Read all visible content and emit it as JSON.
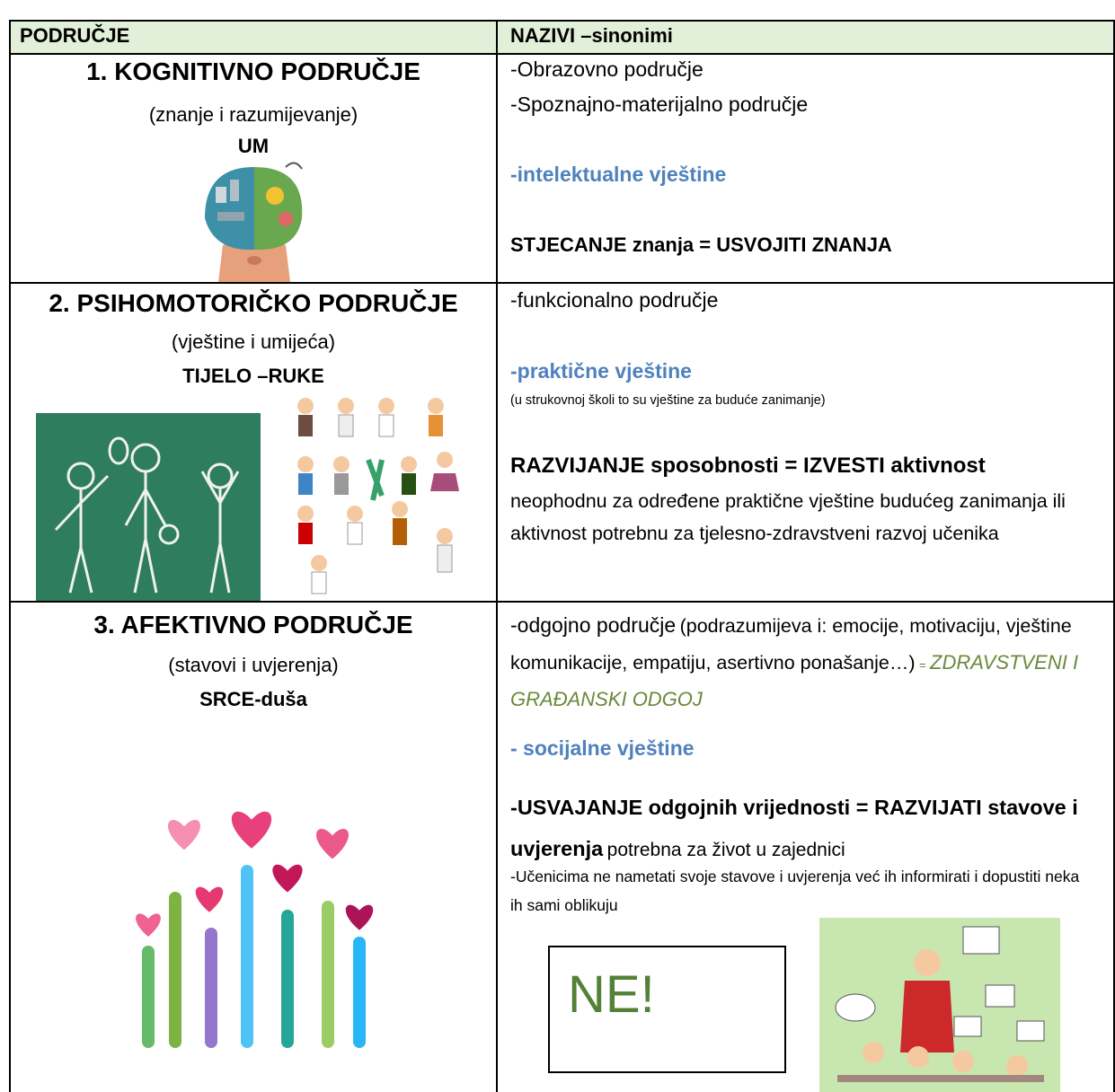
{
  "header": {
    "col1": "PODRUČJE",
    "col2": "NAZIVI –sinonimi"
  },
  "rows": [
    {
      "title": "1. KOGNITIVNO PODRUČJE",
      "subtitle": "(znanje i razumijevanje)",
      "keyword": "UM",
      "synonyms": [
        "-Obrazovno područje",
        "-Spoznajno-materijalno područje"
      ],
      "skills": "-intelektualne vještine",
      "goal": "STJECANJE znanja = USVOJITI ZNANJA"
    },
    {
      "title": "2. PSIHOMOTORIČKO PODRUČJE",
      "subtitle": "(vještine i umijeća)",
      "keyword": "TIJELO –RUKE",
      "synonyms": [
        "-funkcionalno područje"
      ],
      "skills": "-praktične vještine",
      "skills_note": "(u strukovnoj školi to su vještine za buduće zanimanje)",
      "goal": "RAZVIJANJE sposobnosti = IZVESTI aktivnost",
      "goal_detail": "neophodnu za određene praktične vještine budućeg zanimanja ili aktivnost potrebnu za tjelesno-zdravstveni razvoj učenika"
    },
    {
      "title": "3. AFEKTIVNO PODRUČJE",
      "subtitle": "(stavovi i uvjerenja)",
      "keyword": "SRCE-duša",
      "synonym": "-odgojno područje",
      "synonym_note": "(podrazumijeva i: emocije, motivaciju, vještine komunikacije, empatiju, asertivno ponašanje…)",
      "equals": "=",
      "education": "ZDRAVSTVENI I GRAĐANSKI ODGOJ",
      "skills": "- socijalne vještine",
      "goal": "-USVAJANJE odgojnih vrijednosti = RAZVIJATI stavove i uvjerenja",
      "goal_detail": "potrebna za život u zajednici",
      "note": "-Učenicima ne nametati svoje stavove i uvjerenja već ih informirati i dopustiti neka ih sami oblikuju",
      "box": "NE!"
    }
  ]
}
